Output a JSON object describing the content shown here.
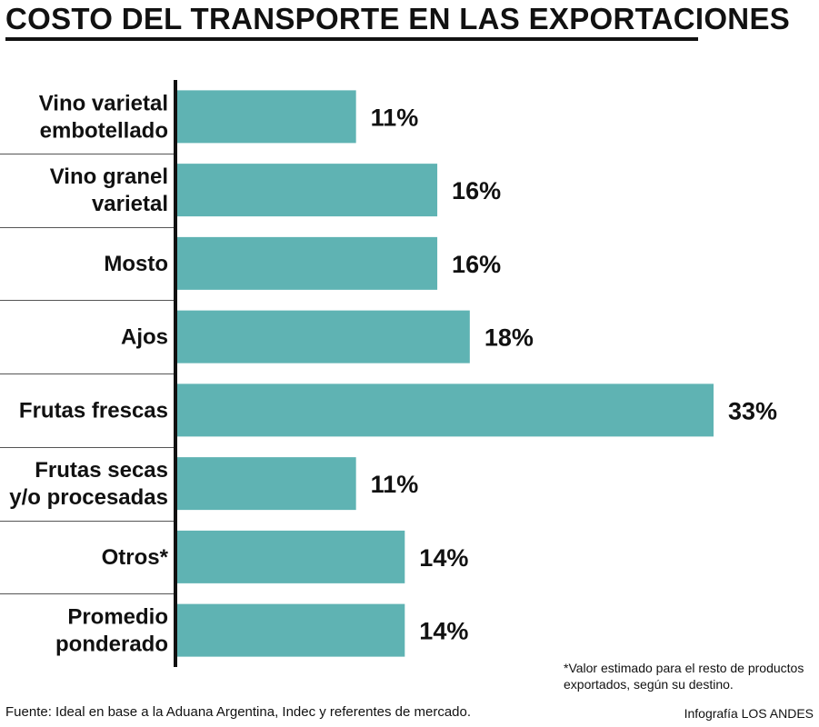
{
  "title": "COSTO DEL TRANSPORTE EN LAS EXPORTACIONES",
  "colors": {
    "bar": "#5fb3b3",
    "text": "#111111",
    "separator": "#555555"
  },
  "chart_data": {
    "type": "bar",
    "orientation": "horizontal",
    "title": "COSTO DEL TRANSPORTE EN LAS EXPORTACIONES",
    "categories": [
      [
        "Vino varietal",
        "embotellado"
      ],
      [
        "Vino granel",
        "varietal"
      ],
      [
        "Mosto"
      ],
      [
        "Ajos"
      ],
      [
        "Frutas frescas"
      ],
      [
        "Frutas secas",
        "y/o procesadas"
      ],
      [
        "Otros*"
      ],
      [
        "Promedio",
        "ponderado"
      ]
    ],
    "values": [
      11,
      16,
      16,
      18,
      33,
      11,
      14,
      14
    ],
    "value_labels": [
      "11%",
      "16%",
      "16%",
      "18%",
      "33%",
      "11%",
      "14%",
      "14%"
    ],
    "unit": "%",
    "xlim": [
      0,
      33
    ]
  },
  "footnote": "*Valor estimado para el resto de productos exportados, según su destino.",
  "source": "Fuente: Ideal en base a la Aduana Argentina, Indec y referentes de mercado.",
  "credit": "Infografía LOS ANDES"
}
